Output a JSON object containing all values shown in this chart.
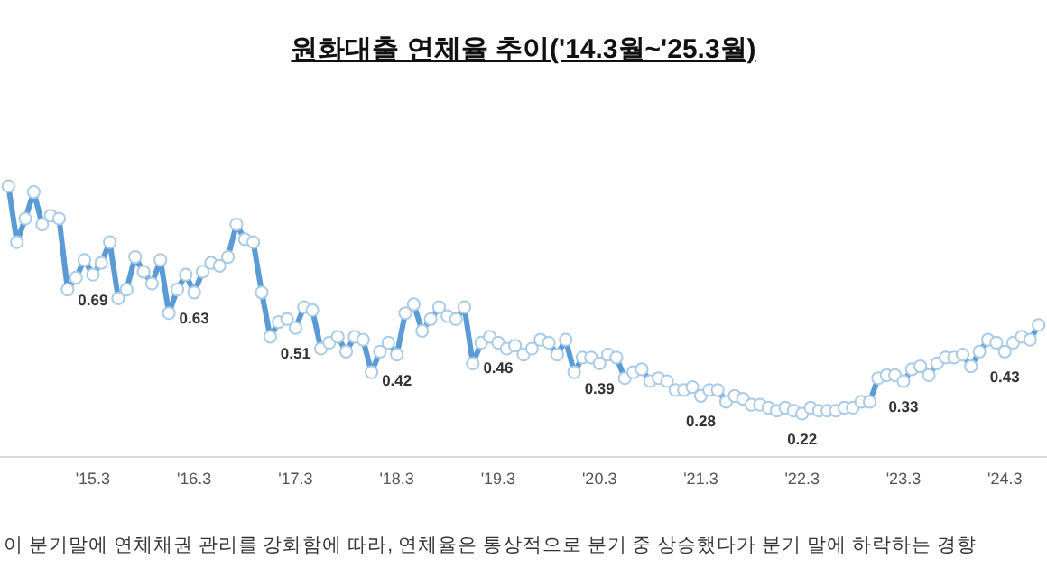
{
  "chart_data": {
    "type": "line",
    "title": "원화대출 연체율 추이('14.3월~'25.3월)",
    "annotations": [
      "이 분기말에 연체채권 관리를 강화함에 따라, 연체율은 통상적으로 분기 중 상승했다가 분기 말에 하락하는 경향"
    ],
    "x": [
      "2014-05",
      "2014-06",
      "2014-07",
      "2014-08",
      "2014-09",
      "2014-10",
      "2014-11",
      "2014-12",
      "2015-01",
      "2015-02",
      "2015-03",
      "2015-04",
      "2015-05",
      "2015-06",
      "2015-07",
      "2015-08",
      "2015-09",
      "2015-10",
      "2015-11",
      "2015-12",
      "2016-01",
      "2016-02",
      "2016-03",
      "2016-04",
      "2016-05",
      "2016-06",
      "2016-07",
      "2016-08",
      "2016-09",
      "2016-10",
      "2016-11",
      "2016-12",
      "2017-01",
      "2017-02",
      "2017-03",
      "2017-04",
      "2017-05",
      "2017-06",
      "2017-07",
      "2017-08",
      "2017-09",
      "2017-10",
      "2017-11",
      "2017-12",
      "2018-01",
      "2018-02",
      "2018-03",
      "2018-04",
      "2018-05",
      "2018-06",
      "2018-07",
      "2018-08",
      "2018-09",
      "2018-10",
      "2018-11",
      "2018-12",
      "2019-01",
      "2019-02",
      "2019-03",
      "2019-04",
      "2019-05",
      "2019-06",
      "2019-07",
      "2019-08",
      "2019-09",
      "2019-10",
      "2019-11",
      "2019-12",
      "2020-01",
      "2020-02",
      "2020-03",
      "2020-04",
      "2020-05",
      "2020-06",
      "2020-07",
      "2020-08",
      "2020-09",
      "2020-10",
      "2020-11",
      "2020-12",
      "2021-01",
      "2021-02",
      "2021-03",
      "2021-04",
      "2021-05",
      "2021-06",
      "2021-07",
      "2021-08",
      "2021-09",
      "2021-10",
      "2021-11",
      "2021-12",
      "2022-01",
      "2022-02",
      "2022-03",
      "2022-04",
      "2022-05",
      "2022-06",
      "2022-07",
      "2022-08",
      "2022-09",
      "2022-10",
      "2022-11",
      "2022-12",
      "2023-01",
      "2023-02",
      "2023-03",
      "2023-04",
      "2023-05",
      "2023-06",
      "2023-07",
      "2023-08",
      "2023-09",
      "2023-10",
      "2023-11",
      "2023-12",
      "2024-01",
      "2024-02",
      "2024-03",
      "2024-04",
      "2024-05",
      "2024-06",
      "2024-07"
    ],
    "values": [
      0.99,
      0.8,
      0.88,
      0.97,
      0.86,
      0.89,
      0.88,
      0.64,
      0.68,
      0.74,
      0.69,
      0.73,
      0.8,
      0.61,
      0.64,
      0.75,
      0.7,
      0.66,
      0.74,
      0.56,
      0.64,
      0.69,
      0.63,
      0.7,
      0.73,
      0.72,
      0.75,
      0.86,
      0.81,
      0.8,
      0.63,
      0.48,
      0.53,
      0.54,
      0.51,
      0.58,
      0.57,
      0.44,
      0.46,
      0.48,
      0.43,
      0.48,
      0.47,
      0.36,
      0.43,
      0.46,
      0.42,
      0.56,
      0.59,
      0.5,
      0.54,
      0.58,
      0.55,
      0.54,
      0.58,
      0.39,
      0.46,
      0.48,
      0.46,
      0.44,
      0.45,
      0.42,
      0.44,
      0.47,
      0.46,
      0.42,
      0.47,
      0.36,
      0.41,
      0.41,
      0.39,
      0.42,
      0.41,
      0.34,
      0.36,
      0.37,
      0.33,
      0.34,
      0.33,
      0.3,
      0.3,
      0.31,
      0.28,
      0.3,
      0.3,
      0.26,
      0.28,
      0.27,
      0.25,
      0.25,
      0.24,
      0.23,
      0.24,
      0.23,
      0.22,
      0.24,
      0.23,
      0.23,
      0.23,
      0.24,
      0.24,
      0.26,
      0.26,
      0.34,
      0.35,
      0.35,
      0.33,
      0.37,
      0.38,
      0.35,
      0.39,
      0.41,
      0.41,
      0.42,
      0.38,
      0.43,
      0.47,
      0.46,
      0.43,
      0.46,
      0.48,
      0.47,
      0.52
    ],
    "value_labels": [
      null,
      null,
      null,
      null,
      null,
      null,
      null,
      null,
      null,
      null,
      "0.69",
      null,
      null,
      null,
      null,
      null,
      null,
      null,
      null,
      null,
      null,
      null,
      "0.63",
      null,
      null,
      null,
      null,
      null,
      null,
      null,
      null,
      null,
      null,
      null,
      "0.51",
      null,
      null,
      null,
      null,
      null,
      null,
      null,
      null,
      null,
      null,
      null,
      "0.42",
      null,
      null,
      null,
      null,
      null,
      null,
      null,
      null,
      null,
      null,
      null,
      "0.46",
      null,
      null,
      null,
      null,
      null,
      null,
      null,
      null,
      null,
      null,
      null,
      "0.39",
      null,
      null,
      null,
      null,
      null,
      null,
      null,
      null,
      null,
      null,
      null,
      "0.28",
      null,
      null,
      null,
      null,
      null,
      null,
      null,
      null,
      null,
      null,
      null,
      "0.22",
      null,
      null,
      null,
      null,
      null,
      null,
      null,
      null,
      null,
      null,
      null,
      "0.33",
      null,
      null,
      null,
      null,
      null,
      null,
      null,
      null,
      null,
      null,
      null,
      "0.43",
      null,
      null,
      null,
      null
    ],
    "color": "#5b9bd5",
    "marker": "circle",
    "xlim": [
      "2014-04",
      "2024-08"
    ],
    "xticks": [
      {
        "value": "2015-03",
        "label": "'15.3"
      },
      {
        "value": "2016-03",
        "label": "'16.3"
      },
      {
        "value": "2017-03",
        "label": "'17.3"
      },
      {
        "value": "2018-03",
        "label": "'18.3"
      },
      {
        "value": "2019-03",
        "label": "'19.3"
      },
      {
        "value": "2020-03",
        "label": "'20.3"
      },
      {
        "value": "2021-03",
        "label": "'21.3"
      },
      {
        "value": "2022-03",
        "label": "'22.3"
      },
      {
        "value": "2023-03",
        "label": "'23.3"
      },
      {
        "value": "2024-03",
        "label": "'24.3"
      }
    ]
  }
}
